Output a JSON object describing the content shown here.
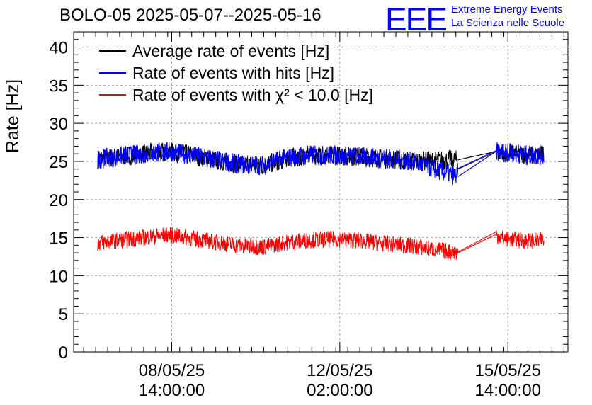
{
  "title": "BOLO-05 2025-05-07--2025-05-16",
  "logo": {
    "mark": "EEE",
    "line1": "Extreme Energy Events",
    "line2": "La Scienza nelle Scuole",
    "color": "#0000ff"
  },
  "chart_data": {
    "type": "line",
    "ylabel": "Rate [Hz]",
    "xlabel": "",
    "ylim": [
      0,
      42
    ],
    "yticks": [
      0,
      5,
      10,
      15,
      20,
      25,
      30,
      35,
      40
    ],
    "x_tick_labels": [
      {
        "date": "08/05/25",
        "time": "14:00:00",
        "x": "2025-05-08T14:00:00"
      },
      {
        "date": "12/05/25",
        "time": "02:00:00",
        "x": "2025-05-12T02:00:00"
      },
      {
        "date": "15/05/25",
        "time": "14:00:00",
        "x": "2025-05-15T14:00:00"
      }
    ],
    "xlim": [
      "2025-05-06T13:00:00",
      "2025-05-16T20:00:00"
    ],
    "grid": true,
    "legend_placement": "top-left",
    "series": [
      {
        "name": "Average rate of events [Hz]",
        "color": "#000000",
        "x": [
          "2025-05-07T01:00:00",
          "2025-05-08T00:00:00",
          "2025-05-08T12:00:00",
          "2025-05-09T00:00:00",
          "2025-05-10T00:00:00",
          "2025-05-10T12:00:00",
          "2025-05-11T00:00:00",
          "2025-05-11T12:00:00",
          "2025-05-12T00:00:00",
          "2025-05-12T12:00:00",
          "2025-05-13T00:00:00",
          "2025-05-13T14:00:00",
          "2025-05-14T13:00:00",
          "2025-05-15T08:00:00",
          "2025-05-15T12:00:00",
          "2025-05-16T00:00:00",
          "2025-05-16T08:00:00"
        ],
        "y": [
          25.3,
          26.0,
          26.3,
          25.8,
          24.6,
          24.5,
          25.5,
          25.8,
          25.8,
          25.6,
          25.4,
          25.0,
          25.2,
          26.3,
          26.2,
          25.8,
          25.8
        ]
      },
      {
        "name": "Rate of events with hits [Hz]",
        "color": "#0000ff",
        "x": [
          "2025-05-07T01:00:00",
          "2025-05-08T00:00:00",
          "2025-05-08T12:00:00",
          "2025-05-09T00:00:00",
          "2025-05-10T00:00:00",
          "2025-05-10T12:00:00",
          "2025-05-11T00:00:00",
          "2025-05-11T12:00:00",
          "2025-05-12T00:00:00",
          "2025-05-12T12:00:00",
          "2025-05-13T00:00:00",
          "2025-05-13T14:00:00",
          "2025-05-14T13:00:00",
          "2025-05-15T08:00:00",
          "2025-05-15T12:00:00",
          "2025-05-16T00:00:00",
          "2025-05-16T08:00:00"
        ],
        "y": [
          25.3,
          26.0,
          26.3,
          25.8,
          24.6,
          24.5,
          25.5,
          25.8,
          25.8,
          25.6,
          25.4,
          25.0,
          23.0,
          26.3,
          26.2,
          25.8,
          25.8
        ]
      },
      {
        "name": "Rate of events with χ² < 10.0 [Hz]",
        "color": "#ff0000",
        "x": [
          "2025-05-07T01:00:00",
          "2025-05-08T00:00:00",
          "2025-05-08T12:00:00",
          "2025-05-09T00:00:00",
          "2025-05-10T00:00:00",
          "2025-05-10T12:00:00",
          "2025-05-11T00:00:00",
          "2025-05-11T12:00:00",
          "2025-05-12T00:00:00",
          "2025-05-12T12:00:00",
          "2025-05-13T00:00:00",
          "2025-05-13T14:00:00",
          "2025-05-14T13:00:00",
          "2025-05-15T08:00:00",
          "2025-05-15T12:00:00",
          "2025-05-16T00:00:00",
          "2025-05-16T08:00:00"
        ],
        "y": [
          14.3,
          15.0,
          15.4,
          14.9,
          13.9,
          13.8,
          14.4,
          14.7,
          14.8,
          14.6,
          14.2,
          13.9,
          13.0,
          15.4,
          14.8,
          14.6,
          14.6
        ]
      }
    ]
  }
}
